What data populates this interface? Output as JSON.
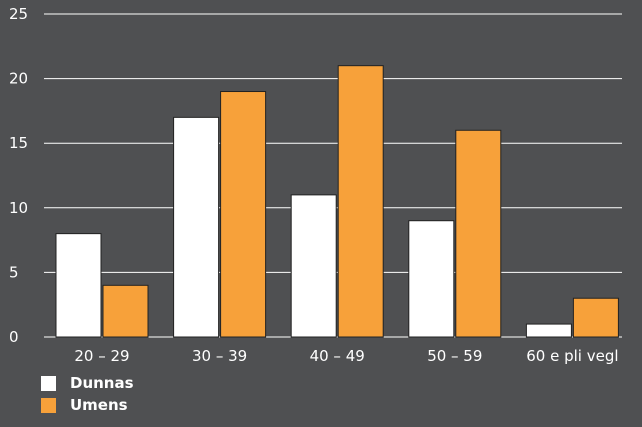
{
  "chart_data": {
    "type": "bar",
    "categories": [
      "20 – 29",
      "30 – 39",
      "40 – 49",
      "50 – 59",
      "60 e pli vegl"
    ],
    "series": [
      {
        "name": "Dunnas",
        "color": "#ffffff",
        "values": [
          8,
          17,
          11,
          9,
          1
        ]
      },
      {
        "name": "Umens",
        "color": "#f7a13a",
        "values": [
          4,
          19,
          21,
          16,
          3
        ]
      }
    ],
    "yticks": [
      "0",
      "5",
      "10",
      "15",
      "20",
      "25"
    ],
    "ylim": [
      0,
      25
    ],
    "grid": true,
    "legend_position": "bottom-left"
  }
}
